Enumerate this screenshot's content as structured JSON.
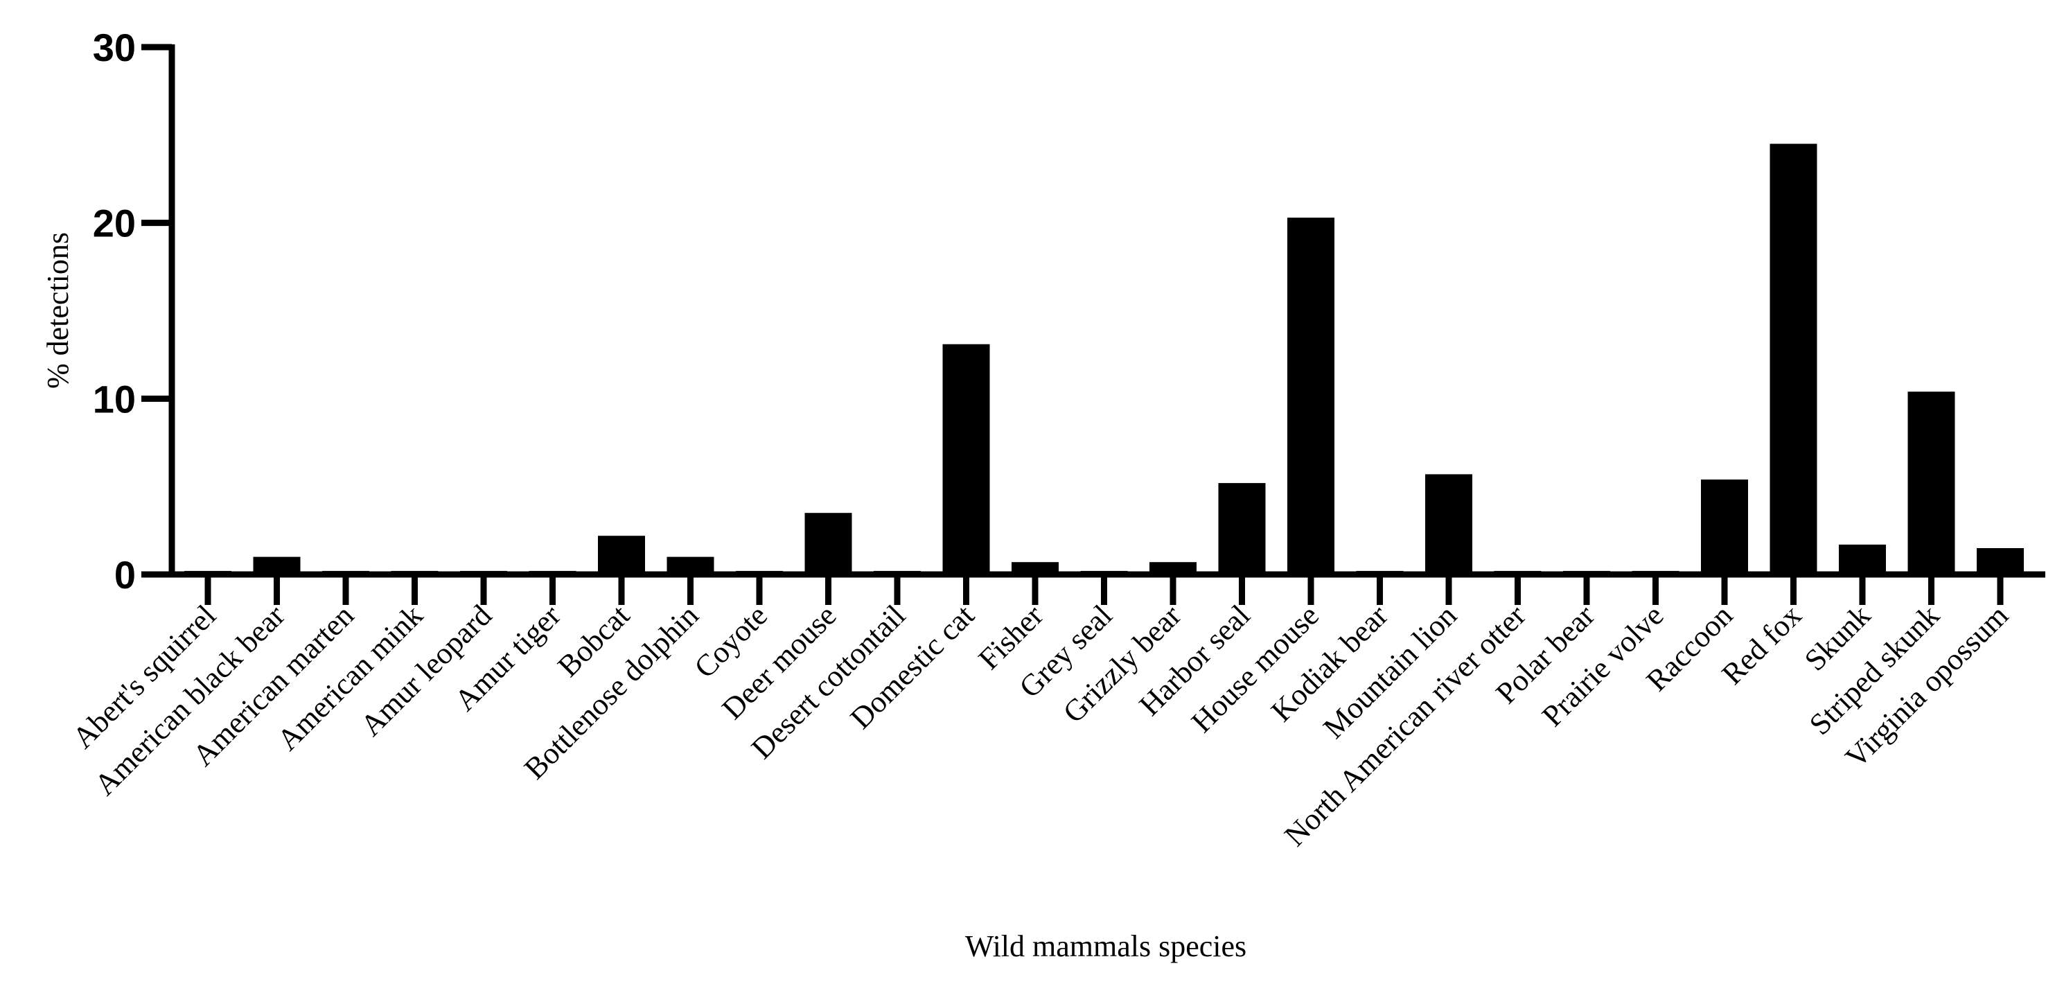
{
  "chart_data": {
    "type": "bar",
    "title": "",
    "xlabel": "Wild mammals species",
    "ylabel": "% detections",
    "ylim": [
      0,
      30
    ],
    "yticks": [
      0,
      10,
      20,
      30
    ],
    "grid": false,
    "legend": "none",
    "bar_color": "#000000",
    "categories": [
      "Abert's squirrel",
      "American black bear",
      "American marten",
      "American mink",
      "Amur leopard",
      "Amur tiger",
      "Bobcat",
      "Bottlenose dolphin",
      "Coyote",
      "Deer mouse",
      "Desert cottontail",
      "Domestic cat",
      "Fisher",
      "Grey seal",
      "Grizzly bear",
      "Harbor seal",
      "House mouse",
      "Kodiak bear",
      "Mountain lion",
      "North American river otter",
      "Polar bear",
      "Prairie volve",
      "Raccoon",
      "Red fox",
      "Skunk",
      "Striped skunk",
      "Virginia opossum"
    ],
    "values": [
      0.2,
      1.0,
      0.2,
      0.2,
      0.2,
      0.2,
      2.2,
      1.0,
      0.2,
      3.5,
      0.2,
      13.1,
      0.7,
      0.2,
      0.7,
      5.2,
      20.3,
      0.2,
      5.7,
      0.2,
      0.2,
      0.2,
      5.4,
      24.5,
      1.7,
      10.4,
      1.5
    ]
  }
}
